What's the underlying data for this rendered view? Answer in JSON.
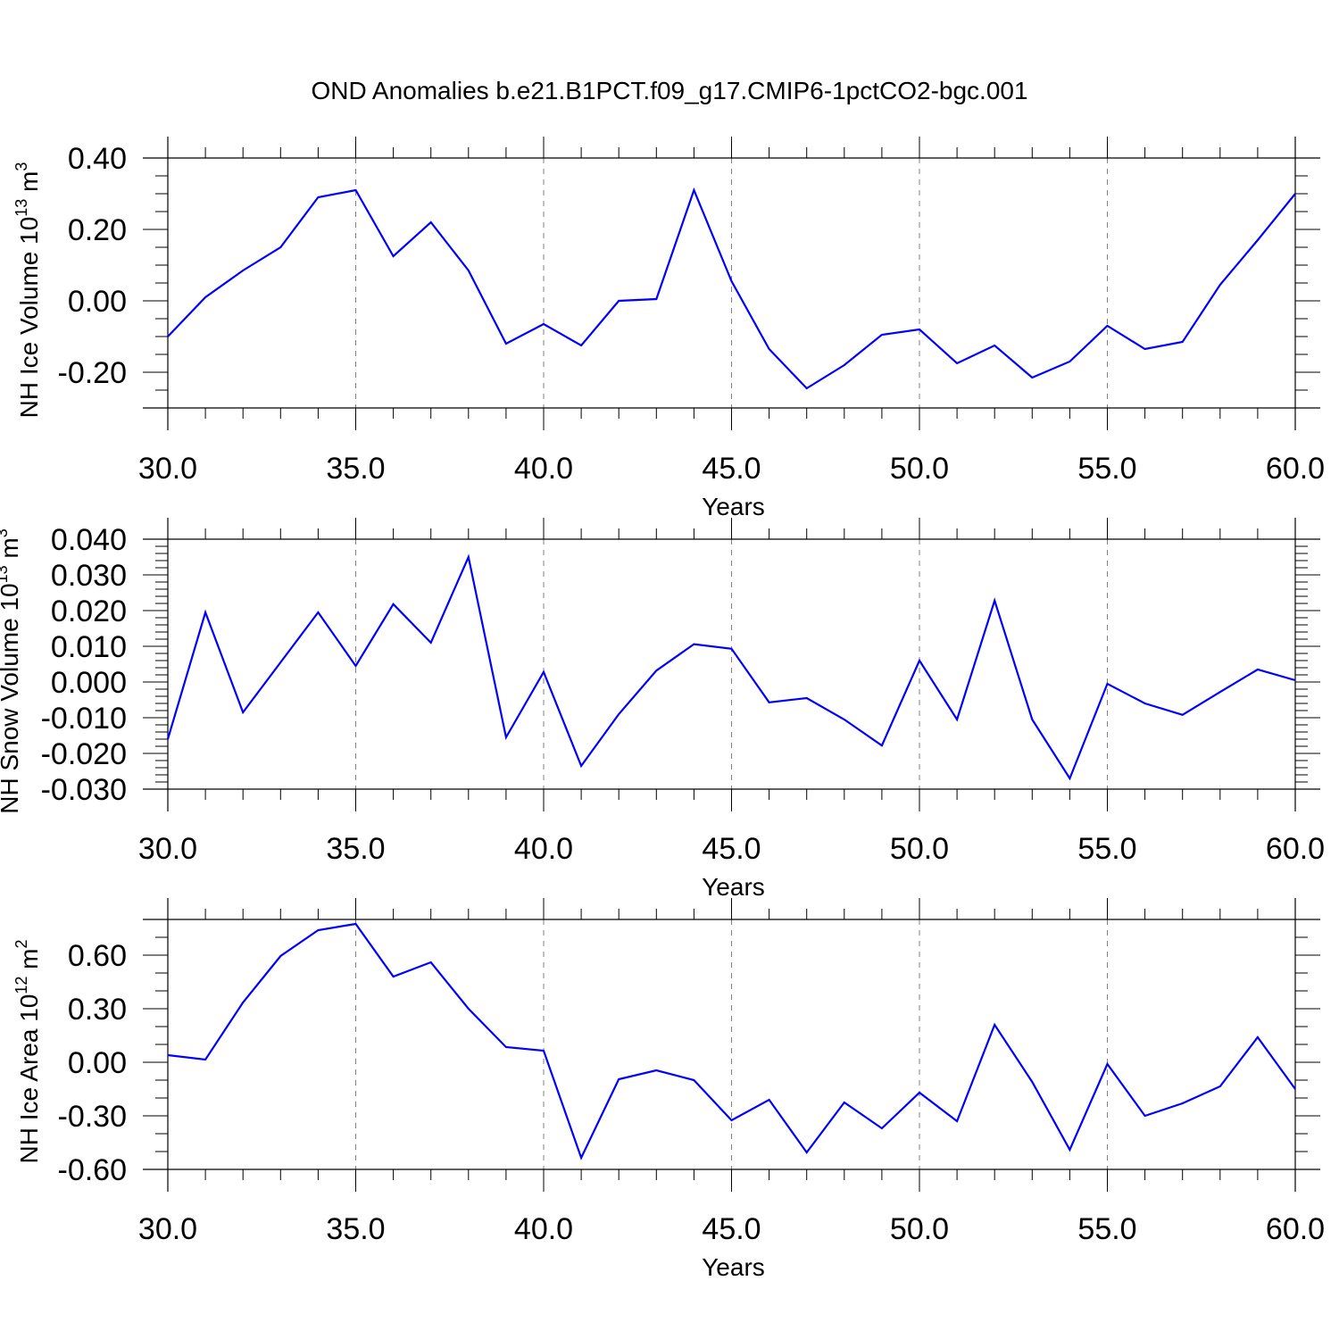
{
  "page": {
    "title": "OND Anomalies b.e21.B1PCT.f09_g17.CMIP6-1pctCO2-bgc.001"
  },
  "colors": {
    "line": "#0000ff",
    "axis": "#000000",
    "grid": "#808080"
  },
  "chart_data": [
    {
      "type": "line",
      "xlabel": "Years",
      "ylabel": "NH Ice Volume 10",
      "ylabel_exp": "13",
      "ylabel_unit": " m",
      "ylabel_unit_exp": "3",
      "xlim": [
        30,
        60
      ],
      "ylim": [
        -0.3,
        0.4
      ],
      "xticks": [
        30,
        35,
        40,
        45,
        50,
        55,
        60
      ],
      "xtick_labels": [
        "30.0",
        "35.0",
        "40.0",
        "45.0",
        "50.0",
        "55.0",
        "60.0"
      ],
      "yticks": [
        -0.2,
        0.0,
        0.2,
        0.4
      ],
      "ytick_labels": [
        "-0.20",
        "0.00",
        "0.20",
        "0.40"
      ],
      "yminor": 0.05,
      "grid": "vertical dashed",
      "series": [
        {
          "x": [
            30,
            31,
            32,
            33,
            34,
            35,
            36,
            37,
            38,
            39,
            40,
            41,
            42,
            43,
            44,
            45,
            46,
            47,
            48,
            49,
            50,
            51,
            52,
            53,
            54,
            55,
            56,
            57,
            58,
            59,
            60
          ],
          "values": [
            -0.1,
            0.01,
            0.085,
            0.15,
            0.29,
            0.31,
            0.125,
            0.22,
            0.085,
            -0.12,
            -0.065,
            -0.125,
            0.0,
            0.005,
            0.31,
            0.055,
            -0.135,
            -0.245,
            -0.18,
            -0.095,
            -0.08,
            -0.175,
            -0.125,
            -0.215,
            -0.17,
            -0.07,
            -0.135,
            -0.115,
            0.045,
            0.17,
            0.3
          ]
        }
      ]
    },
    {
      "type": "line",
      "xlabel": "Years",
      "ylabel": "NH Snow Volume 10",
      "ylabel_exp": "13",
      "ylabel_unit": " m",
      "ylabel_unit_exp": "3",
      "xlim": [
        30,
        60
      ],
      "ylim": [
        -0.03,
        0.04
      ],
      "xticks": [
        30,
        35,
        40,
        45,
        50,
        55,
        60
      ],
      "xtick_labels": [
        "30.0",
        "35.0",
        "40.0",
        "45.0",
        "50.0",
        "55.0",
        "60.0"
      ],
      "yticks": [
        -0.03,
        -0.02,
        -0.01,
        0.0,
        0.01,
        0.02,
        0.03,
        0.04
      ],
      "ytick_labels": [
        "-0.030",
        "-0.020",
        "-0.010",
        "0.000",
        "0.010",
        "0.020",
        "0.030",
        "0.040"
      ],
      "yminor": 0.002,
      "grid": "vertical dashed",
      "series": [
        {
          "x": [
            30,
            31,
            32,
            33,
            34,
            35,
            36,
            37,
            38,
            39,
            40,
            41,
            42,
            43,
            44,
            45,
            46,
            47,
            48,
            49,
            50,
            51,
            52,
            53,
            54,
            55,
            56,
            57,
            58,
            59,
            60
          ],
          "values": [
            -0.016,
            0.0195,
            -0.0085,
            0.0055,
            0.0195,
            0.0045,
            0.0218,
            0.011,
            0.035,
            -0.0155,
            0.0028,
            -0.0235,
            -0.009,
            0.0032,
            0.0106,
            0.0093,
            -0.0057,
            -0.0045,
            -0.0105,
            -0.0178,
            0.006,
            -0.0105,
            0.0228,
            -0.0105,
            -0.027,
            -0.0005,
            -0.006,
            -0.0092,
            -0.0028,
            0.0035,
            0.0005
          ]
        }
      ]
    },
    {
      "type": "line",
      "xlabel": "Years",
      "ylabel": "NH Ice Area 10",
      "ylabel_exp": "12",
      "ylabel_unit": " m",
      "ylabel_unit_exp": "2",
      "xlim": [
        30,
        60
      ],
      "ylim": [
        -0.6,
        0.8
      ],
      "xticks": [
        30,
        35,
        40,
        45,
        50,
        55,
        60
      ],
      "xtick_labels": [
        "30.0",
        "35.0",
        "40.0",
        "45.0",
        "50.0",
        "55.0",
        "60.0"
      ],
      "yticks": [
        -0.6,
        -0.3,
        0.0,
        0.3,
        0.6
      ],
      "ytick_labels": [
        "-0.60",
        "-0.30",
        "0.00",
        "0.30",
        "0.60"
      ],
      "yminor": 0.1,
      "grid": "vertical dashed",
      "series": [
        {
          "x": [
            30,
            31,
            32,
            33,
            34,
            35,
            36,
            37,
            38,
            39,
            40,
            41,
            42,
            43,
            44,
            45,
            46,
            47,
            48,
            49,
            50,
            51,
            52,
            53,
            54,
            55,
            56,
            57,
            58,
            59,
            60
          ],
          "values": [
            0.04,
            0.015,
            0.335,
            0.595,
            0.74,
            0.775,
            0.48,
            0.56,
            0.3,
            0.085,
            0.065,
            -0.535,
            -0.095,
            -0.045,
            -0.1,
            -0.325,
            -0.21,
            -0.505,
            -0.225,
            -0.37,
            -0.17,
            -0.33,
            0.21,
            -0.11,
            -0.49,
            -0.01,
            -0.3,
            -0.23,
            -0.135,
            0.14,
            -0.15
          ]
        }
      ]
    }
  ]
}
